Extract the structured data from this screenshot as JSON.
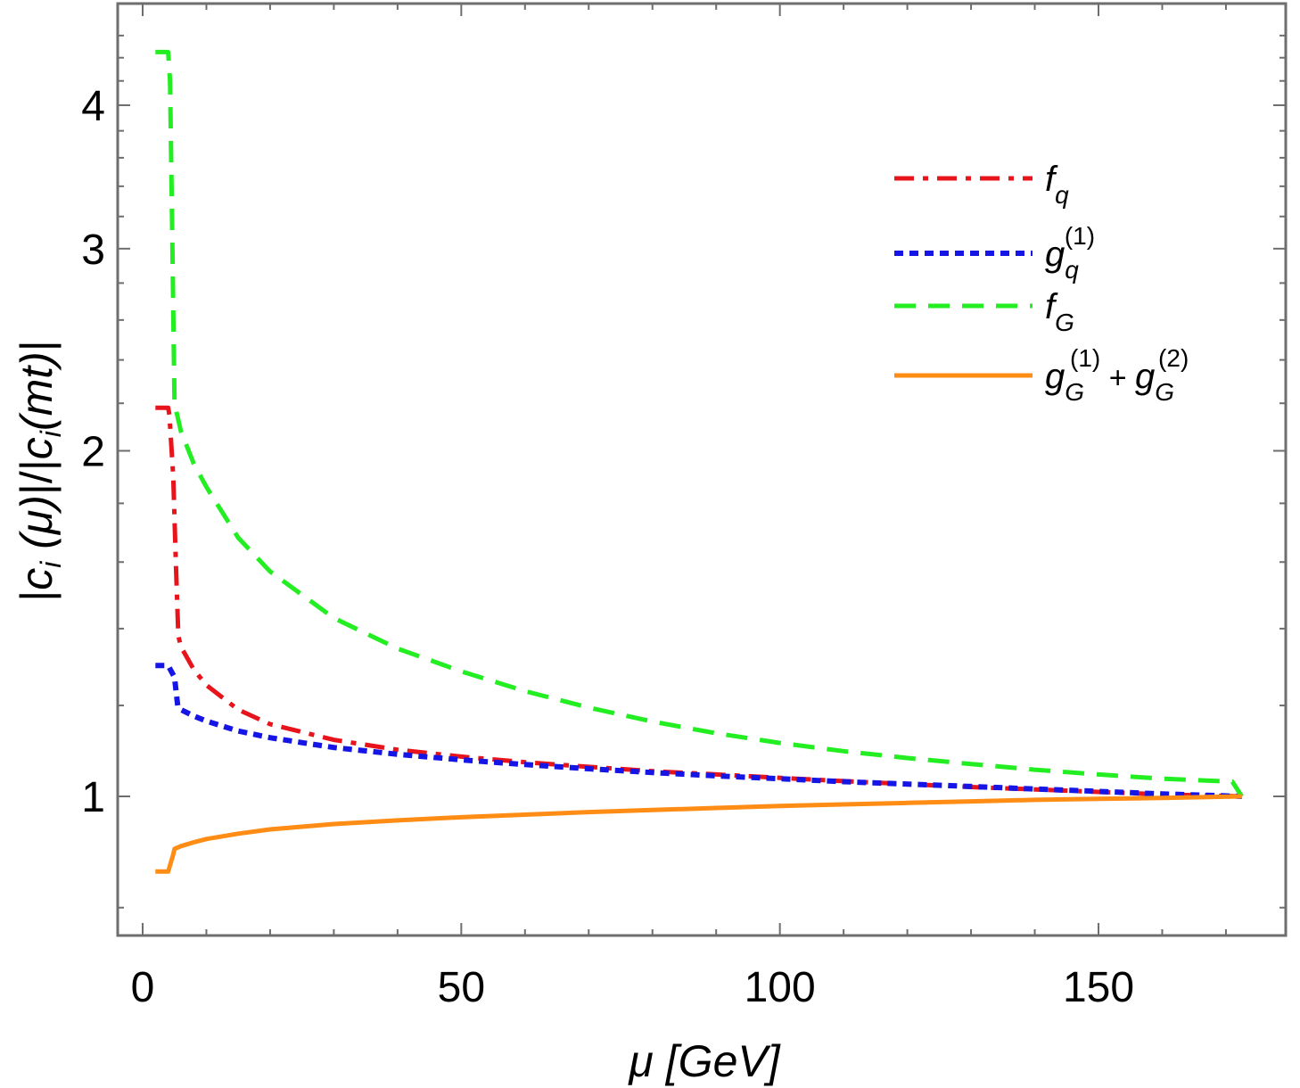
{
  "chart_data": {
    "type": "line",
    "title": "",
    "xlabel": "μ [GeV]",
    "ylabel": "|c_i (μ)|/|c_i(mt)|",
    "ylabel_parts": {
      "bar_left": "|",
      "c1": "c",
      "i1": "i",
      "mu_part": " (μ)",
      "mid": "|/|",
      "c2": "c",
      "i2": "i",
      "mt_part": "(mt)",
      "bar_right": "|"
    },
    "xlabel_parts": {
      "mu": "μ",
      "unit": "[GeV]"
    },
    "xlim": [
      -4,
      176
    ],
    "ylim": [
      0.72,
      4.7
    ],
    "y_scale": "log",
    "x_ticks": [
      0,
      50,
      100,
      150
    ],
    "x_tick_labels": [
      "0",
      "50",
      "100",
      "150"
    ],
    "y_ticks": [
      1,
      2,
      3,
      4
    ],
    "y_tick_labels": [
      "1",
      "2",
      "3",
      "4"
    ],
    "legend_position": "top-right",
    "series": [
      {
        "name": "f_q",
        "legend": {
          "base": "f",
          "sub": "q",
          "sup": ""
        },
        "color": "#e8141b",
        "style": "dash-dot",
        "x": [
          2,
          4,
          4.2,
          4.8,
          5.2,
          5.6,
          6,
          8,
          10,
          15,
          20,
          30,
          40,
          50,
          60,
          70,
          80,
          90,
          100,
          110,
          120,
          130,
          140,
          150,
          160,
          172.5
        ],
        "y": [
          2.18,
          2.18,
          2.15,
          1.9,
          1.6,
          1.38,
          1.35,
          1.29,
          1.25,
          1.19,
          1.156,
          1.12,
          1.098,
          1.083,
          1.071,
          1.061,
          1.052,
          1.045,
          1.038,
          1.031,
          1.025,
          1.019,
          1.014,
          1.009,
          1.004,
          1.0
        ]
      },
      {
        "name": "g_q^(1)",
        "legend": {
          "base": "g",
          "sub": "q",
          "sup": "(1)"
        },
        "color": "#1515e6",
        "style": "dotted",
        "x": [
          2,
          4,
          5,
          5.5,
          6,
          8,
          10,
          15,
          20,
          30,
          40,
          50,
          60,
          70,
          80,
          90,
          100,
          110,
          120,
          130,
          140,
          150,
          160,
          172.5
        ],
        "y": [
          1.3,
          1.3,
          1.27,
          1.2,
          1.19,
          1.175,
          1.163,
          1.14,
          1.125,
          1.103,
          1.088,
          1.076,
          1.066,
          1.057,
          1.049,
          1.042,
          1.036,
          1.03,
          1.025,
          1.02,
          1.015,
          1.01,
          1.005,
          1.0
        ]
      },
      {
        "name": "f_G",
        "legend": {
          "base": "f",
          "sub": "G",
          "sup": ""
        },
        "color": "#22ee22",
        "style": "dashed",
        "x": [
          2,
          4,
          4.3,
          4.6,
          5,
          6,
          8,
          10,
          15,
          20,
          30,
          40,
          50,
          60,
          70,
          80,
          90,
          100,
          110,
          120,
          130,
          140,
          150,
          160,
          171,
          172.5
        ],
        "y": [
          4.45,
          4.45,
          4.2,
          3.2,
          2.2,
          2.08,
          1.95,
          1.86,
          1.68,
          1.57,
          1.43,
          1.345,
          1.285,
          1.235,
          1.195,
          1.162,
          1.135,
          1.113,
          1.095,
          1.08,
          1.067,
          1.055,
          1.045,
          1.036,
          1.03,
          1.0
        ]
      },
      {
        "name": "g_G^(1) + g_G^(2)",
        "legend": {
          "base": "g",
          "sub": "G",
          "sup": "(1)",
          "plus": "+",
          "base2": "g",
          "sub2": "G",
          "sup2": "(2)"
        },
        "color": "#ff8c14",
        "style": "solid",
        "x": [
          2,
          4,
          4.8,
          5,
          6,
          8,
          10,
          15,
          20,
          30,
          40,
          50,
          60,
          70,
          80,
          90,
          100,
          110,
          120,
          130,
          140,
          150,
          160,
          172.5
        ],
        "y": [
          0.86,
          0.86,
          0.89,
          0.9,
          0.905,
          0.912,
          0.918,
          0.928,
          0.936,
          0.946,
          0.953,
          0.959,
          0.964,
          0.969,
          0.973,
          0.977,
          0.981,
          0.984,
          0.987,
          0.99,
          0.993,
          0.995,
          0.997,
          1.0
        ]
      }
    ]
  }
}
